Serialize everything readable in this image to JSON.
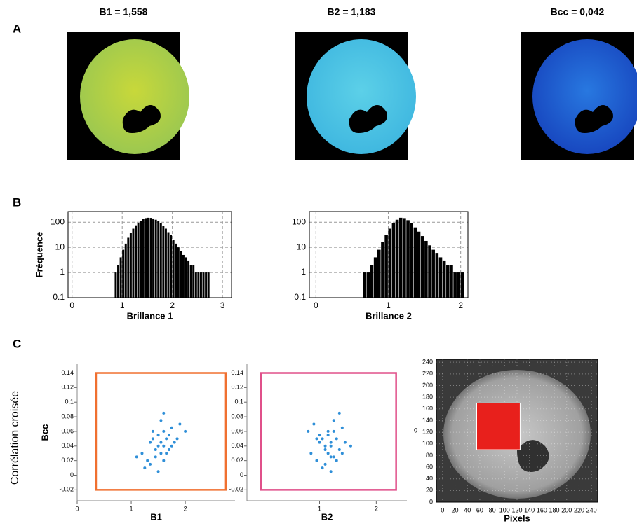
{
  "panels": [
    "A",
    "B",
    "C"
  ],
  "images": [
    {
      "title": "B1 = 1,558"
    },
    {
      "title": "B2 = 1,183"
    },
    {
      "title": "Bcc = 0,042"
    }
  ],
  "side_label": "Corrélation croisée",
  "chart_data": [
    {
      "type": "histogram",
      "ylabel": "Fréquence",
      "xlabel": "Brillance 1",
      "log_y": true,
      "grid": true,
      "color": "#000000",
      "xlim": [
        -0.08,
        3.18
      ],
      "ylim": [
        0.1,
        265
      ],
      "xticks": [
        0,
        1,
        2,
        3
      ],
      "yticks": [
        0.1,
        1,
        10,
        100
      ],
      "bins": [
        0.85,
        0.9,
        0.95,
        1.0,
        1.05,
        1.1,
        1.15,
        1.2,
        1.25,
        1.3,
        1.35,
        1.4,
        1.45,
        1.5,
        1.55,
        1.6,
        1.65,
        1.7,
        1.75,
        1.8,
        1.85,
        1.9,
        1.95,
        2.0,
        2.05,
        2.1,
        2.15,
        2.2,
        2.25,
        2.3,
        2.35,
        2.4,
        2.45,
        2.5,
        2.55,
        2.6,
        2.65,
        2.7,
        2.75
      ],
      "counts": [
        1,
        2,
        4,
        8,
        14,
        24,
        38,
        55,
        75,
        95,
        115,
        132,
        145,
        150,
        148,
        140,
        125,
        108,
        90,
        72,
        55,
        40,
        30,
        20,
        14,
        10,
        7,
        5,
        4,
        3,
        2,
        2,
        1,
        1,
        1,
        1,
        1,
        1
      ]
    },
    {
      "type": "histogram",
      "xlabel": "Brillance 2",
      "log_y": true,
      "grid": true,
      "color": "#000000",
      "xlim": [
        -0.09,
        2.1
      ],
      "ylim": [
        0.1,
        265
      ],
      "xticks": [
        0,
        1,
        2
      ],
      "yticks": [
        0.1,
        1,
        10,
        100
      ],
      "bins": [
        0.65,
        0.7,
        0.75,
        0.8,
        0.85,
        0.9,
        0.95,
        1.0,
        1.05,
        1.1,
        1.15,
        1.2,
        1.25,
        1.3,
        1.35,
        1.4,
        1.45,
        1.5,
        1.55,
        1.6,
        1.65,
        1.7,
        1.75,
        1.8,
        1.85,
        1.9,
        1.95,
        2.0,
        2.05
      ],
      "counts": [
        1,
        1,
        2,
        4,
        8,
        16,
        30,
        55,
        90,
        125,
        150,
        145,
        120,
        90,
        62,
        42,
        28,
        18,
        12,
        8,
        6,
        4,
        3,
        2,
        2,
        1,
        1,
        1
      ]
    },
    {
      "type": "scatter",
      "xlabel": "B1",
      "ylabel": "Bcc",
      "color": "#2f8fd8",
      "xlim": [
        0,
        2.92
      ],
      "ylim": [
        -0.035,
        0.152
      ],
      "xticks": [
        0,
        1,
        2
      ],
      "yticks": [
        -0.02,
        0,
        0.02,
        0.04,
        0.06,
        0.08,
        0.1,
        0.12,
        0.14
      ],
      "gate": {
        "x": [
          0.35,
          2.75
        ],
        "y": [
          -0.02,
          0.14
        ],
        "color": "#f07030"
      },
      "x": [
        1.2,
        1.3,
        1.35,
        1.4,
        1.45,
        1.5,
        1.5,
        1.55,
        1.55,
        1.6,
        1.6,
        1.65,
        1.7,
        1.75,
        1.8,
        1.9,
        1.25,
        1.45,
        1.6,
        1.7,
        1.4,
        1.55,
        1.65,
        1.85,
        1.35,
        1.5,
        1.6,
        1.75,
        2.0,
        1.1
      ],
      "values": [
        0.03,
        0.02,
        0.045,
        0.05,
        0.035,
        0.04,
        0.055,
        0.03,
        0.045,
        0.04,
        0.06,
        0.05,
        0.035,
        0.065,
        0.045,
        0.07,
        0.01,
        0.025,
        0.02,
        0.055,
        0.06,
        0.075,
        0.03,
        0.05,
        0.015,
        0.005,
        0.085,
        0.04,
        0.06,
        0.025
      ]
    },
    {
      "type": "scatter",
      "xlabel": "B2",
      "color": "#2f8fd8",
      "annotation": "0",
      "xlim": [
        -0.28,
        2.54
      ],
      "ylim": [
        -0.035,
        0.152
      ],
      "xticks": [
        1,
        2
      ],
      "yticks": [
        -0.02,
        0,
        0.02,
        0.04,
        0.06,
        0.08,
        0.1,
        0.12,
        0.14
      ],
      "gate": {
        "x": [
          -0.03,
          2.35
        ],
        "y": [
          -0.02,
          0.14
        ],
        "color": "#e0508a"
      },
      "x": [
        0.85,
        0.95,
        1.0,
        1.05,
        1.1,
        1.1,
        1.15,
        1.15,
        1.2,
        1.2,
        1.25,
        1.3,
        1.35,
        1.4,
        1.45,
        0.9,
        1.05,
        1.2,
        1.3,
        1.0,
        1.15,
        1.25,
        1.4,
        0.95,
        1.1,
        1.2,
        1.35,
        1.55,
        0.8,
        1.25
      ],
      "values": [
        0.03,
        0.02,
        0.045,
        0.05,
        0.035,
        0.04,
        0.055,
        0.03,
        0.045,
        0.04,
        0.06,
        0.05,
        0.035,
        0.065,
        0.045,
        0.07,
        0.01,
        0.025,
        0.02,
        0.055,
        0.06,
        0.075,
        0.03,
        0.05,
        0.015,
        0.005,
        0.085,
        0.04,
        0.06,
        0.025
      ]
    },
    {
      "type": "image",
      "xlabel": "Pixels",
      "grid": true,
      "xlim": [
        -10,
        250
      ],
      "ylim": [
        0,
        245
      ],
      "xticks": [
        0,
        20,
        40,
        60,
        80,
        100,
        120,
        140,
        160,
        180,
        200,
        220,
        240
      ],
      "yticks": [
        0,
        20,
        40,
        60,
        80,
        100,
        120,
        140,
        160,
        180,
        200,
        220,
        240
      ],
      "roi": {
        "x": [
          55,
          125
        ],
        "y": [
          90,
          170
        ],
        "color": "#e8201c"
      }
    }
  ]
}
